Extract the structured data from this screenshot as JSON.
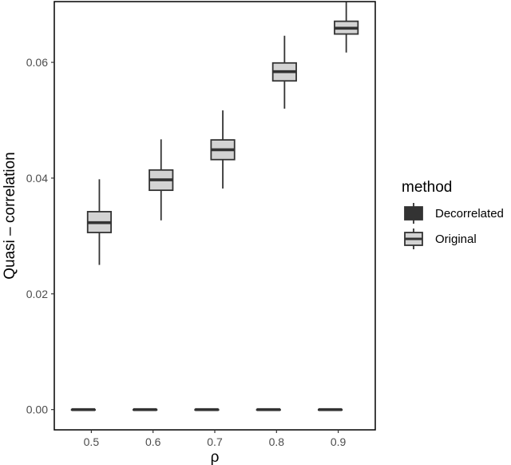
{
  "chart_data": {
    "type": "boxplot",
    "title": "",
    "xlabel": "ρ",
    "ylabel": "Quasi – correlation",
    "categories": [
      "0.5",
      "0.6",
      "0.7",
      "0.8",
      "0.9"
    ],
    "ylim": [
      -0.0035,
      0.0705
    ],
    "yticks": [
      0.0,
      0.02,
      0.04,
      0.06
    ],
    "ytick_labels": [
      "0.00",
      "0.02",
      "0.04",
      "0.06"
    ],
    "grid": false,
    "legend": {
      "title": "method",
      "position": "right",
      "entries": [
        {
          "label": "Decorrelated",
          "color": "#333333"
        },
        {
          "label": "Original",
          "color": "#d3d3d3"
        }
      ]
    },
    "series": [
      {
        "name": "Decorrelated",
        "color": "#333333",
        "boxes": [
          {
            "min": 0.0,
            "q1": 0.0,
            "median": 0.0,
            "q3": 0.0,
            "max": 0.0
          },
          {
            "min": 0.0,
            "q1": 0.0,
            "median": 0.0,
            "q3": 0.0,
            "max": 0.0
          },
          {
            "min": 0.0,
            "q1": 0.0,
            "median": 0.0,
            "q3": 0.0,
            "max": 0.0
          },
          {
            "min": 0.0,
            "q1": 0.0,
            "median": 0.0,
            "q3": 0.0,
            "max": 0.0
          },
          {
            "min": 0.0,
            "q1": 0.0,
            "median": 0.0,
            "q3": 0.0,
            "max": 0.0
          }
        ]
      },
      {
        "name": "Original",
        "color": "#d3d3d3",
        "boxes": [
          {
            "min": 0.025,
            "q1": 0.0306,
            "median": 0.0323,
            "q3": 0.0342,
            "max": 0.0398
          },
          {
            "min": 0.0327,
            "q1": 0.0379,
            "median": 0.0397,
            "q3": 0.0414,
            "max": 0.0467
          },
          {
            "min": 0.0382,
            "q1": 0.0432,
            "median": 0.0449,
            "q3": 0.0466,
            "max": 0.0517
          },
          {
            "min": 0.052,
            "q1": 0.0568,
            "median": 0.0584,
            "q3": 0.0599,
            "max": 0.0646
          },
          {
            "min": 0.0617,
            "q1": 0.0649,
            "median": 0.0659,
            "q3": 0.0671,
            "max": 0.0704
          }
        ]
      }
    ]
  }
}
